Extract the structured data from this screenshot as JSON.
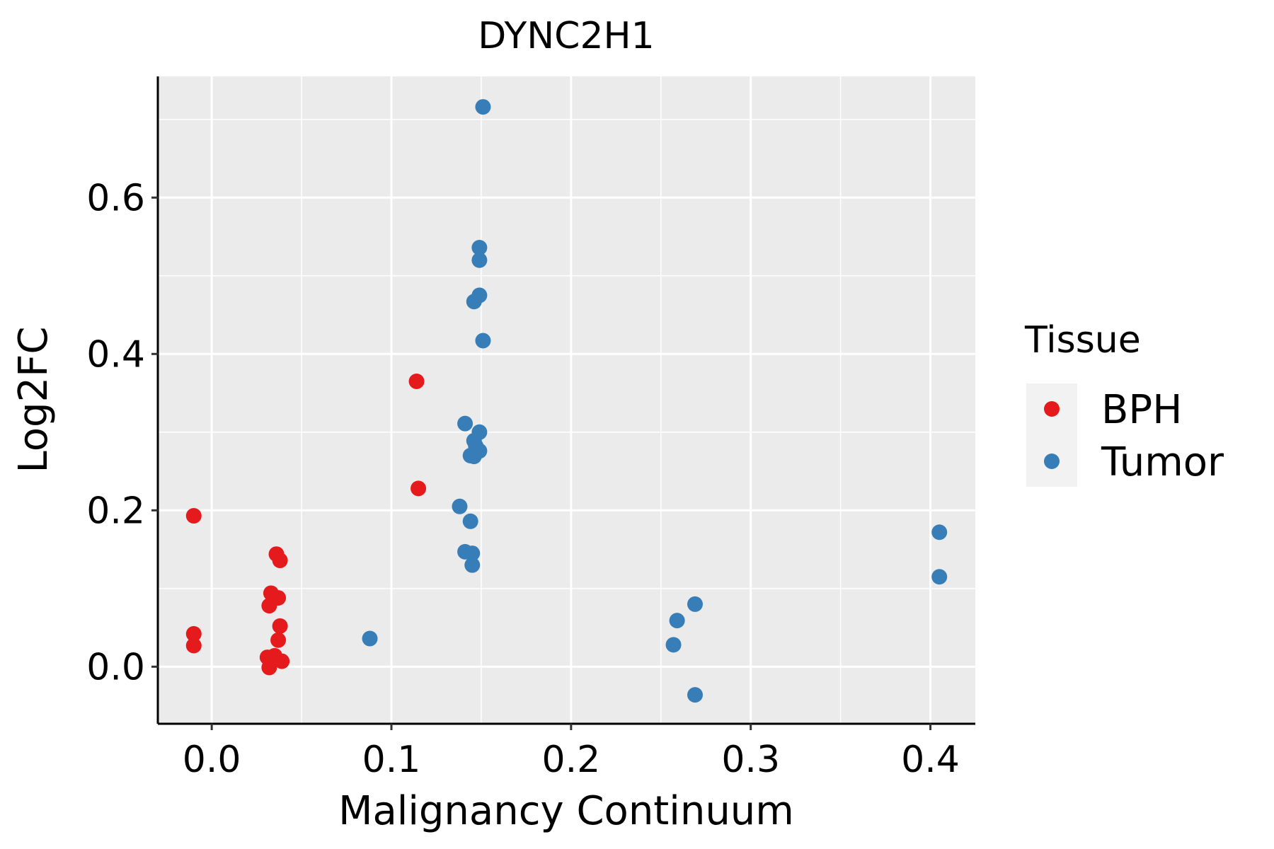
{
  "chart_data": {
    "type": "scatter",
    "title": "DYNC2H1",
    "xlabel": "Malignancy Continuum",
    "ylabel": "Log2FC",
    "xlim": [
      -0.03,
      0.425
    ],
    "ylim": [
      -0.073,
      0.755
    ],
    "x_ticks": [
      0.0,
      0.1,
      0.2,
      0.3,
      0.4
    ],
    "x_tick_labels": [
      "0.0",
      "0.1",
      "0.2",
      "0.3",
      "0.4"
    ],
    "y_ticks": [
      0.0,
      0.2,
      0.4,
      0.6
    ],
    "y_tick_labels": [
      "0.0",
      "0.2",
      "0.4",
      "0.6"
    ],
    "grid": true,
    "legend": {
      "title": "Tissue",
      "position": "right",
      "entries": [
        {
          "name": "BPH",
          "color": "#E41A1C"
        },
        {
          "name": "Tumor",
          "color": "#377EB8"
        }
      ]
    },
    "series": [
      {
        "name": "BPH",
        "color": "#E41A1C",
        "points": [
          {
            "x": -0.01,
            "y": 0.193
          },
          {
            "x": -0.01,
            "y": 0.042
          },
          {
            "x": -0.01,
            "y": 0.027
          },
          {
            "x": 0.036,
            "y": 0.144
          },
          {
            "x": 0.038,
            "y": 0.136
          },
          {
            "x": 0.033,
            "y": 0.094
          },
          {
            "x": 0.037,
            "y": 0.088
          },
          {
            "x": 0.032,
            "y": 0.078
          },
          {
            "x": 0.038,
            "y": 0.052
          },
          {
            "x": 0.037,
            "y": 0.034
          },
          {
            "x": 0.035,
            "y": 0.014
          },
          {
            "x": 0.031,
            "y": 0.012
          },
          {
            "x": 0.039,
            "y": 0.007
          },
          {
            "x": 0.032,
            "y": -0.001
          },
          {
            "x": 0.114,
            "y": 0.365
          },
          {
            "x": 0.115,
            "y": 0.228
          }
        ]
      },
      {
        "name": "Tumor",
        "color": "#377EB8",
        "points": [
          {
            "x": 0.151,
            "y": 0.716
          },
          {
            "x": 0.149,
            "y": 0.536
          },
          {
            "x": 0.149,
            "y": 0.52
          },
          {
            "x": 0.149,
            "y": 0.475
          },
          {
            "x": 0.146,
            "y": 0.467
          },
          {
            "x": 0.151,
            "y": 0.417
          },
          {
            "x": 0.141,
            "y": 0.311
          },
          {
            "x": 0.149,
            "y": 0.3
          },
          {
            "x": 0.146,
            "y": 0.289
          },
          {
            "x": 0.147,
            "y": 0.282
          },
          {
            "x": 0.149,
            "y": 0.276
          },
          {
            "x": 0.144,
            "y": 0.27
          },
          {
            "x": 0.146,
            "y": 0.269
          },
          {
            "x": 0.138,
            "y": 0.205
          },
          {
            "x": 0.144,
            "y": 0.186
          },
          {
            "x": 0.141,
            "y": 0.147
          },
          {
            "x": 0.145,
            "y": 0.145
          },
          {
            "x": 0.145,
            "y": 0.13
          },
          {
            "x": 0.088,
            "y": 0.036
          },
          {
            "x": 0.269,
            "y": 0.08
          },
          {
            "x": 0.259,
            "y": 0.059
          },
          {
            "x": 0.257,
            "y": 0.028
          },
          {
            "x": 0.269,
            "y": -0.036
          },
          {
            "x": 0.405,
            "y": 0.172
          },
          {
            "x": 0.405,
            "y": 0.115
          }
        ]
      }
    ]
  }
}
